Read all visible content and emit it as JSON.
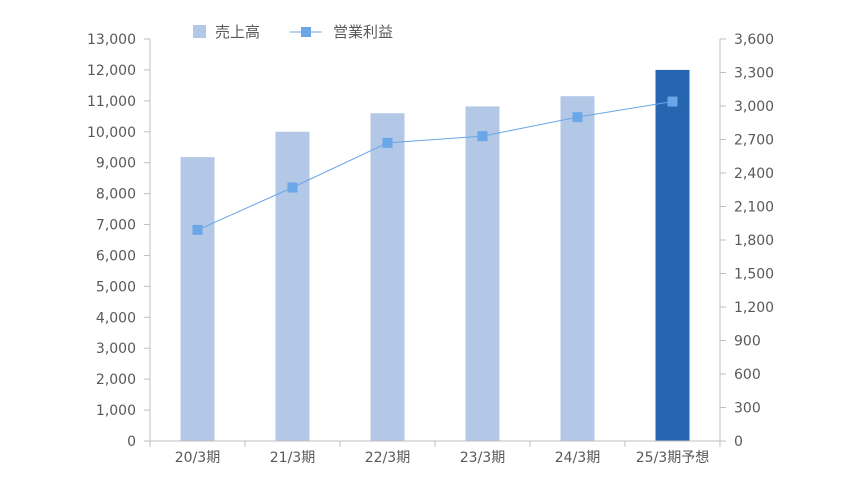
{
  "chart_data": {
    "type": "bar",
    "categories": [
      "20/3期",
      "21/3期",
      "22/3期",
      "23/3期",
      "24/3期",
      "25/3期予想"
    ],
    "series": [
      {
        "name": "売上高",
        "type": "bar",
        "axis": "left",
        "values": [
          9180,
          10000,
          10600,
          10820,
          11150,
          12000
        ],
        "colors": [
          "#b3c7e6",
          "#b3c7e6",
          "#b3c7e6",
          "#b3c7e6",
          "#b3c7e6",
          "#2666b0"
        ]
      },
      {
        "name": "営業利益",
        "type": "line",
        "axis": "right",
        "values": [
          1890,
          2270,
          2670,
          2730,
          2900,
          3040
        ],
        "color": "#6aa6e8"
      }
    ],
    "left_axis": {
      "min": 0,
      "max": 13000,
      "ticks": [
        0,
        1000,
        2000,
        3000,
        4000,
        5000,
        6000,
        7000,
        8000,
        9000,
        10000,
        11000,
        12000,
        13000
      ],
      "tick_labels": [
        "0",
        "1,000",
        "2,000",
        "3,000",
        "4,000",
        "5,000",
        "6,000",
        "7,000",
        "8,000",
        "9,000",
        "10,000",
        "11,000",
        "12,000",
        "13,000"
      ]
    },
    "right_axis": {
      "min": 0,
      "max": 3600,
      "ticks": [
        0,
        300,
        600,
        900,
        1200,
        1500,
        1800,
        2100,
        2400,
        2700,
        3000,
        3300,
        3600
      ],
      "tick_labels": [
        "0",
        "300",
        "600",
        "900",
        "1,200",
        "1,500",
        "1,800",
        "2,100",
        "2,400",
        "2,700",
        "3,000",
        "3,300",
        "3,600"
      ]
    },
    "grid": false,
    "legend_position": "top-left"
  }
}
